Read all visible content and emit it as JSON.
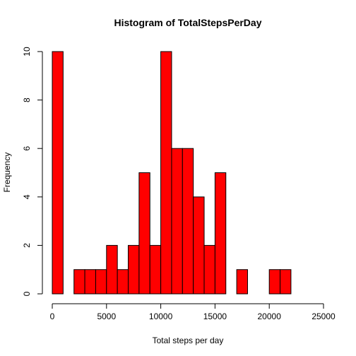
{
  "chart_data": {
    "type": "bar",
    "title": "Histogram of TotalStepsPerDay",
    "xlabel": "Total steps per day",
    "ylabel": "Frequency",
    "xlim": [
      0,
      25000
    ],
    "ylim": [
      0,
      10
    ],
    "bin_width": 1000,
    "bins": [
      {
        "start": 0,
        "end": 1000,
        "count": 10
      },
      {
        "start": 1000,
        "end": 2000,
        "count": 0
      },
      {
        "start": 2000,
        "end": 3000,
        "count": 1
      },
      {
        "start": 3000,
        "end": 4000,
        "count": 1
      },
      {
        "start": 4000,
        "end": 5000,
        "count": 1
      },
      {
        "start": 5000,
        "end": 6000,
        "count": 2
      },
      {
        "start": 6000,
        "end": 7000,
        "count": 1
      },
      {
        "start": 7000,
        "end": 8000,
        "count": 2
      },
      {
        "start": 8000,
        "end": 9000,
        "count": 5
      },
      {
        "start": 9000,
        "end": 10000,
        "count": 2
      },
      {
        "start": 10000,
        "end": 11000,
        "count": 10
      },
      {
        "start": 11000,
        "end": 12000,
        "count": 6
      },
      {
        "start": 12000,
        "end": 13000,
        "count": 6
      },
      {
        "start": 13000,
        "end": 14000,
        "count": 4
      },
      {
        "start": 14000,
        "end": 15000,
        "count": 2
      },
      {
        "start": 15000,
        "end": 16000,
        "count": 5
      },
      {
        "start": 16000,
        "end": 17000,
        "count": 0
      },
      {
        "start": 17000,
        "end": 18000,
        "count": 1
      },
      {
        "start": 18000,
        "end": 19000,
        "count": 0
      },
      {
        "start": 19000,
        "end": 20000,
        "count": 0
      },
      {
        "start": 20000,
        "end": 21000,
        "count": 1
      },
      {
        "start": 21000,
        "end": 22000,
        "count": 1
      }
    ],
    "x_ticks": [
      0,
      5000,
      10000,
      15000,
      20000,
      25000
    ],
    "y_ticks": [
      0,
      2,
      4,
      6,
      8,
      10
    ],
    "bar_color": "#ff0000",
    "edge_color": "#000000",
    "grid": false
  }
}
